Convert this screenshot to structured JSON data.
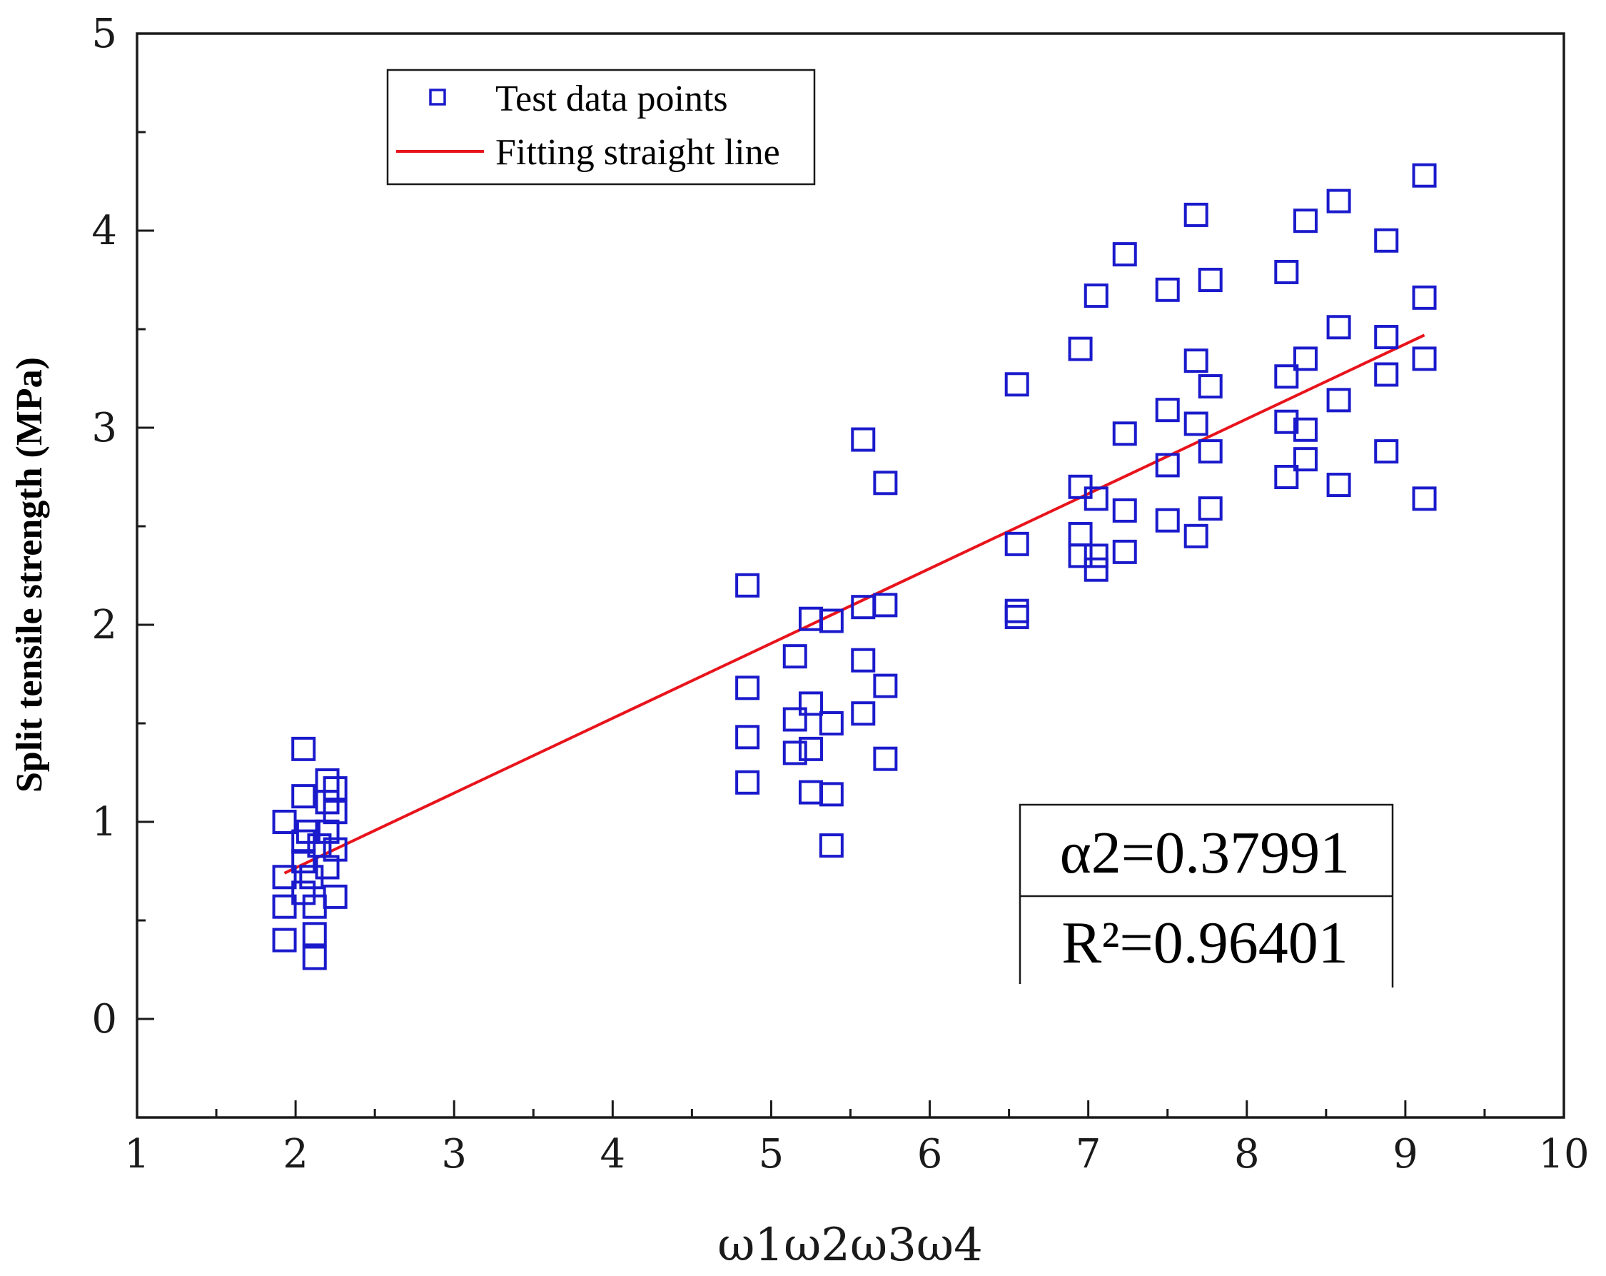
{
  "chart_data": {
    "type": "scatter",
    "title": "",
    "xlabel": "ω1ω2ω3ω4",
    "ylabel": "Split tensile strength (MPa)",
    "xlim": [
      1,
      10
    ],
    "ylim": [
      -0.5,
      5
    ],
    "x_ticks": [
      "1",
      "2",
      "3",
      "4",
      "5",
      "6",
      "7",
      "8",
      "9",
      "10"
    ],
    "y_ticks": [
      "0",
      "1",
      "2",
      "3",
      "4",
      "5"
    ],
    "legend_position": "top-left",
    "series": [
      {
        "name": "Test data points",
        "kind": "scatter",
        "marker": "open-square",
        "color": "#1a1acc",
        "points": [
          [
            2.05,
            1.37
          ],
          [
            1.93,
            1.0
          ],
          [
            2.05,
            1.13
          ],
          [
            2.2,
            1.21
          ],
          [
            2.25,
            1.17
          ],
          [
            2.2,
            1.1
          ],
          [
            2.25,
            1.05
          ],
          [
            2.08,
            0.95
          ],
          [
            2.2,
            0.95
          ],
          [
            2.05,
            0.9
          ],
          [
            2.15,
            0.88
          ],
          [
            2.25,
            0.86
          ],
          [
            2.05,
            0.8
          ],
          [
            2.2,
            0.77
          ],
          [
            1.93,
            0.72
          ],
          [
            2.1,
            0.72
          ],
          [
            2.05,
            0.64
          ],
          [
            2.25,
            0.62
          ],
          [
            1.93,
            0.57
          ],
          [
            2.12,
            0.57
          ],
          [
            1.93,
            0.4
          ],
          [
            2.12,
            0.43
          ],
          [
            2.12,
            0.31
          ],
          [
            4.85,
            2.2
          ],
          [
            4.85,
            1.68
          ],
          [
            4.85,
            1.43
          ],
          [
            4.85,
            1.2
          ],
          [
            5.25,
            2.03
          ],
          [
            5.38,
            2.02
          ],
          [
            5.58,
            2.09
          ],
          [
            5.72,
            2.1
          ],
          [
            5.15,
            1.84
          ],
          [
            5.58,
            1.82
          ],
          [
            5.72,
            1.69
          ],
          [
            5.25,
            1.6
          ],
          [
            5.15,
            1.52
          ],
          [
            5.58,
            1.55
          ],
          [
            5.38,
            1.5
          ],
          [
            5.15,
            1.35
          ],
          [
            5.25,
            1.37
          ],
          [
            5.72,
            1.32
          ],
          [
            5.25,
            1.15
          ],
          [
            5.38,
            1.14
          ],
          [
            5.38,
            0.88
          ],
          [
            5.58,
            2.94
          ],
          [
            5.72,
            2.72
          ],
          [
            6.55,
            3.22
          ],
          [
            6.55,
            2.41
          ],
          [
            6.55,
            2.07
          ],
          [
            6.55,
            2.04
          ],
          [
            6.95,
            3.4
          ],
          [
            6.95,
            2.7
          ],
          [
            6.95,
            2.46
          ],
          [
            6.95,
            2.35
          ],
          [
            7.05,
            3.67
          ],
          [
            7.05,
            2.64
          ],
          [
            7.05,
            2.35
          ],
          [
            7.05,
            2.28
          ],
          [
            7.23,
            3.88
          ],
          [
            7.23,
            2.97
          ],
          [
            7.23,
            2.58
          ],
          [
            7.23,
            2.37
          ],
          [
            7.5,
            3.7
          ],
          [
            7.5,
            3.09
          ],
          [
            7.5,
            2.81
          ],
          [
            7.5,
            2.53
          ],
          [
            7.68,
            4.08
          ],
          [
            7.68,
            3.34
          ],
          [
            7.68,
            3.02
          ],
          [
            7.68,
            2.45
          ],
          [
            7.77,
            3.75
          ],
          [
            7.77,
            3.21
          ],
          [
            7.77,
            2.88
          ],
          [
            7.77,
            2.59
          ],
          [
            8.25,
            3.79
          ],
          [
            8.25,
            3.26
          ],
          [
            8.25,
            3.03
          ],
          [
            8.25,
            2.75
          ],
          [
            8.37,
            4.05
          ],
          [
            8.37,
            3.35
          ],
          [
            8.37,
            2.99
          ],
          [
            8.37,
            2.84
          ],
          [
            8.58,
            4.15
          ],
          [
            8.58,
            3.51
          ],
          [
            8.58,
            3.14
          ],
          [
            8.58,
            2.71
          ],
          [
            8.88,
            3.95
          ],
          [
            8.88,
            3.46
          ],
          [
            8.88,
            3.27
          ],
          [
            8.88,
            2.88
          ],
          [
            9.12,
            4.28
          ],
          [
            9.12,
            3.66
          ],
          [
            9.12,
            3.35
          ],
          [
            9.12,
            2.64
          ]
        ]
      },
      {
        "name": "Fitting straight line",
        "kind": "line",
        "color": "#e8141c",
        "x": [
          1.93,
          9.12
        ],
        "y": [
          0.74,
          3.47
        ]
      }
    ],
    "annotations": [
      "α2=0.37991",
      "R²=0.96401"
    ]
  }
}
